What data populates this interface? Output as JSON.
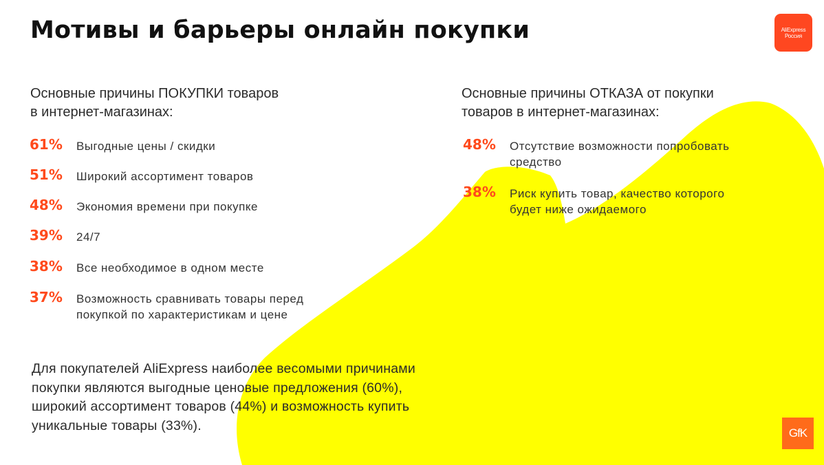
{
  "title": "Мотивы и барьеры онлайн покупки",
  "logos": {
    "aliexpress_line1": "AliExpress",
    "aliexpress_line2": "Россия",
    "gfk": "GfK"
  },
  "colors": {
    "accent": "#ff4a1c",
    "highlight": "#ffff00",
    "aliexpress_brand": "#ff4720",
    "gfk_brand": "#ff6b1a"
  },
  "purchase_reasons": {
    "heading_lines": [
      "Основные причины ПОКУПКИ товаров",
      "в интернет-магазинах:"
    ],
    "items": [
      {
        "percent": "61%",
        "lines": [
          "Выгодные цены / скидки"
        ]
      },
      {
        "percent": "51%",
        "lines": [
          "Широкий ассортимент товаров"
        ]
      },
      {
        "percent": "48%",
        "lines": [
          "Экономия времени при покупке"
        ]
      },
      {
        "percent": "39%",
        "lines": [
          "24/7"
        ]
      },
      {
        "percent": "38%",
        "lines": [
          "Все необходимое в одном месте"
        ]
      },
      {
        "percent": "37%",
        "lines": [
          "Возможность сравнивать товары перед",
          "покупкой по характеристикам и цене"
        ]
      }
    ]
  },
  "refusal_reasons": {
    "heading_lines": [
      "Основные причины ОТКАЗА от покупки",
      "товаров в интернет-магазинах:"
    ],
    "items": [
      {
        "percent": "48%",
        "lines": [
          "Отсутствие возможности попробовать",
          "средство"
        ]
      },
      {
        "percent": "38%",
        "lines": [
          "Риск купить товар, качество которого",
          "будет ниже ожидаемого"
        ]
      }
    ]
  },
  "summary_lines": [
    "Для покупателей AliExpress наиболее весомыми причинами",
    "покупки являются выгодные ценовые предложения (60%),",
    "широкий ассортимент товаров (44%) и возможность купить",
    "уникальные товары (33%)."
  ]
}
